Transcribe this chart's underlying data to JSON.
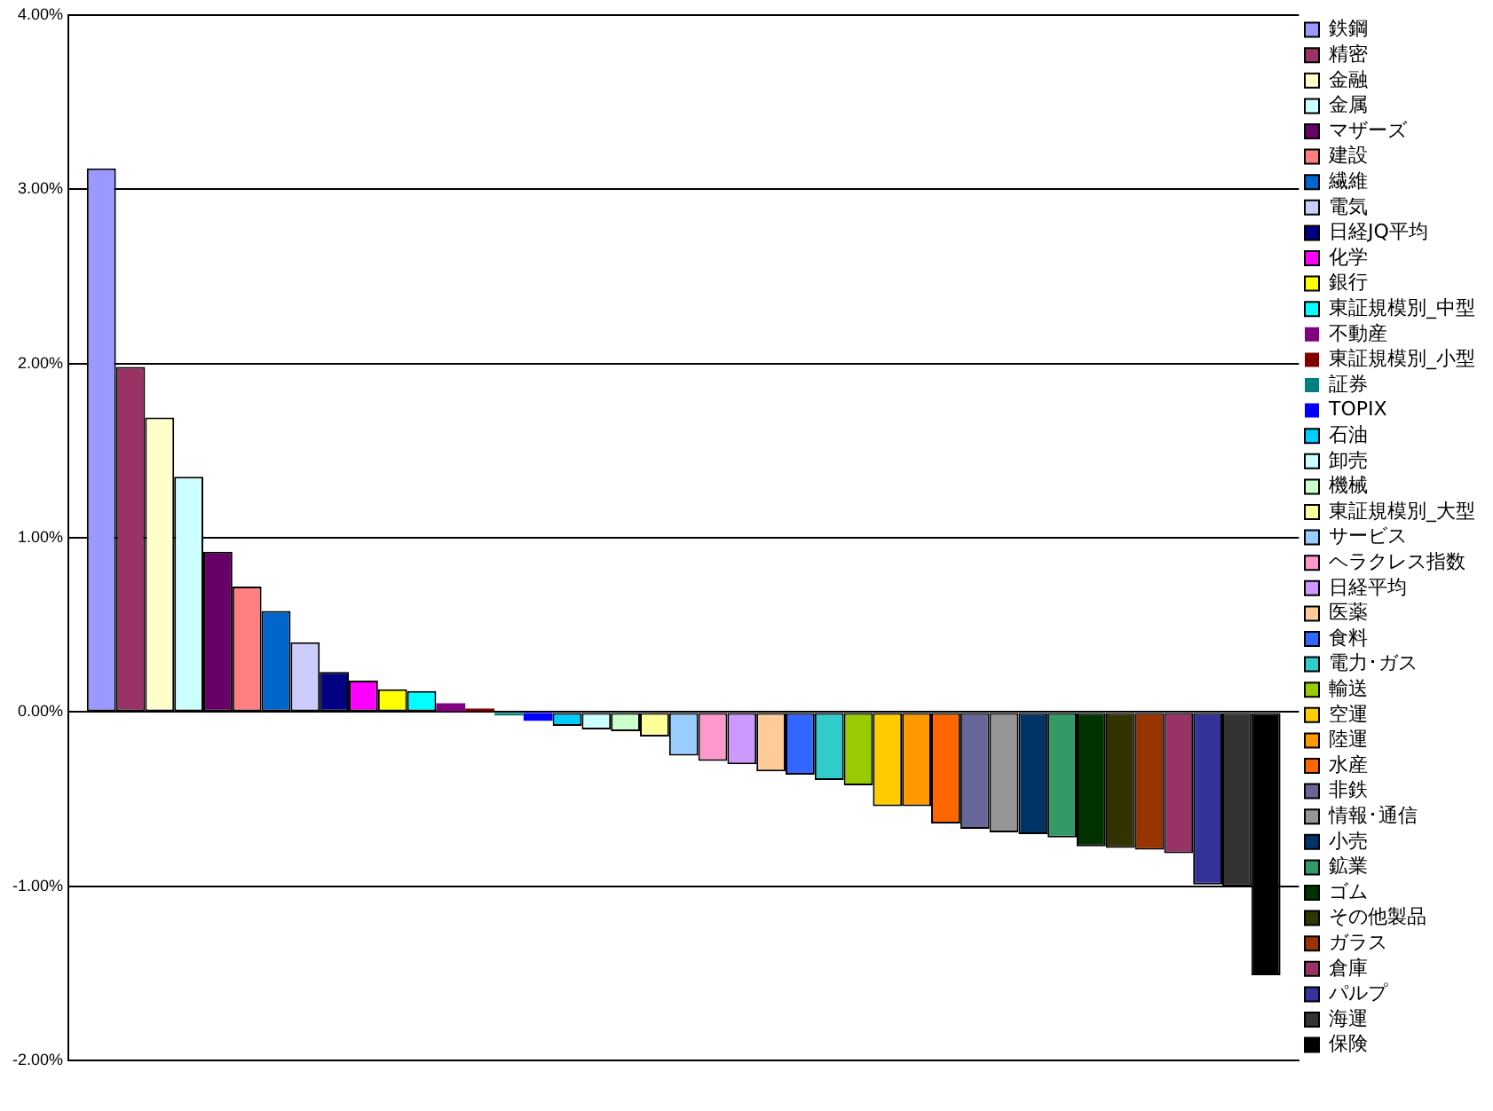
{
  "chart_data": {
    "type": "bar",
    "categories": [
      null
    ],
    "series": [
      {
        "name": "鉄鋼",
        "color": "#9999ff",
        "values": [
          3.12
        ]
      },
      {
        "name": "精密",
        "color": "#993366",
        "values": [
          1.98
        ]
      },
      {
        "name": "金融",
        "color": "#ffffcc",
        "values": [
          1.69
        ]
      },
      {
        "name": "金属",
        "color": "#ccffff",
        "values": [
          1.35
        ]
      },
      {
        "name": "マザーズ",
        "color": "#660066",
        "values": [
          0.92
        ]
      },
      {
        "name": "建設",
        "color": "#ff8080",
        "values": [
          0.72
        ]
      },
      {
        "name": "繊維",
        "color": "#0066cc",
        "values": [
          0.58
        ]
      },
      {
        "name": "電気",
        "color": "#ccccff",
        "values": [
          0.4
        ]
      },
      {
        "name": "日経JQ平均",
        "color": "#000080",
        "values": [
          0.23
        ]
      },
      {
        "name": "化学",
        "color": "#ff00ff",
        "values": [
          0.18
        ]
      },
      {
        "name": "銀行",
        "color": "#ffff00",
        "values": [
          0.13
        ]
      },
      {
        "name": "東証規模別_中型",
        "color": "#00ffff",
        "values": [
          0.12
        ]
      },
      {
        "name": "不動産",
        "color": "#800080",
        "values": [
          0.05
        ]
      },
      {
        "name": "東証規模別_小型",
        "color": "#800000",
        "values": [
          0.02
        ]
      },
      {
        "name": "証券",
        "color": "#008080",
        "values": [
          -0.02
        ]
      },
      {
        "name": "TOPIX",
        "color": "#0000ff",
        "values": [
          -0.05
        ]
      },
      {
        "name": "石油",
        "color": "#00ccff",
        "values": [
          -0.08
        ]
      },
      {
        "name": "卸売",
        "color": "#ccffff",
        "values": [
          -0.1
        ]
      },
      {
        "name": "機械",
        "color": "#ccffcc",
        "values": [
          -0.11
        ]
      },
      {
        "name": "東証規模別_大型",
        "color": "#ffff99",
        "values": [
          -0.14
        ]
      },
      {
        "name": "サービス",
        "color": "#99ccff",
        "values": [
          -0.25
        ]
      },
      {
        "name": "ヘラクレス指数",
        "color": "#ff99cc",
        "values": [
          -0.28
        ]
      },
      {
        "name": "日経平均",
        "color": "#cc99ff",
        "values": [
          -0.3
        ]
      },
      {
        "name": "医薬",
        "color": "#ffcc99",
        "values": [
          -0.34
        ]
      },
      {
        "name": "食料",
        "color": "#3366ff",
        "values": [
          -0.36
        ]
      },
      {
        "name": "電力･ガス",
        "color": "#33cccc",
        "values": [
          -0.39
        ]
      },
      {
        "name": "輸送",
        "color": "#99cc00",
        "values": [
          -0.42
        ]
      },
      {
        "name": "空運",
        "color": "#ffcc00",
        "values": [
          -0.54
        ]
      },
      {
        "name": "陸運",
        "color": "#ff9900",
        "values": [
          -0.54
        ]
      },
      {
        "name": "水産",
        "color": "#ff6600",
        "values": [
          -0.64
        ]
      },
      {
        "name": "非鉄",
        "color": "#666699",
        "values": [
          -0.67
        ]
      },
      {
        "name": "情報･通信",
        "color": "#969696",
        "values": [
          -0.69
        ]
      },
      {
        "name": "小売",
        "color": "#003366",
        "values": [
          -0.7
        ]
      },
      {
        "name": "鉱業",
        "color": "#339966",
        "values": [
          -0.72
        ]
      },
      {
        "name": "ゴム",
        "color": "#003300",
        "values": [
          -0.77
        ]
      },
      {
        "name": "その他製品",
        "color": "#333300",
        "values": [
          -0.78
        ]
      },
      {
        "name": "ガラス",
        "color": "#993300",
        "values": [
          -0.79
        ]
      },
      {
        "name": "倉庫",
        "color": "#993366",
        "values": [
          -0.81
        ]
      },
      {
        "name": "パルプ",
        "color": "#333399",
        "values": [
          -0.99
        ]
      },
      {
        "name": "海運",
        "color": "#333333",
        "values": [
          -1.0
        ]
      },
      {
        "name": "保険",
        "color": "#000000",
        "values": [
          -1.51
        ]
      }
    ],
    "ylim": [
      -2,
      4
    ],
    "yticks": [
      {
        "value": -2,
        "label": "-2.00%"
      },
      {
        "value": -1,
        "label": "-1.00%"
      },
      {
        "value": 0,
        "label": "0.00%"
      },
      {
        "value": 1,
        "label": "1.00%"
      },
      {
        "value": 2,
        "label": "2.00%"
      },
      {
        "value": 3,
        "label": "3.00%"
      },
      {
        "value": 4,
        "label": "4.00%"
      }
    ],
    "grid": "y",
    "legend": "right"
  }
}
